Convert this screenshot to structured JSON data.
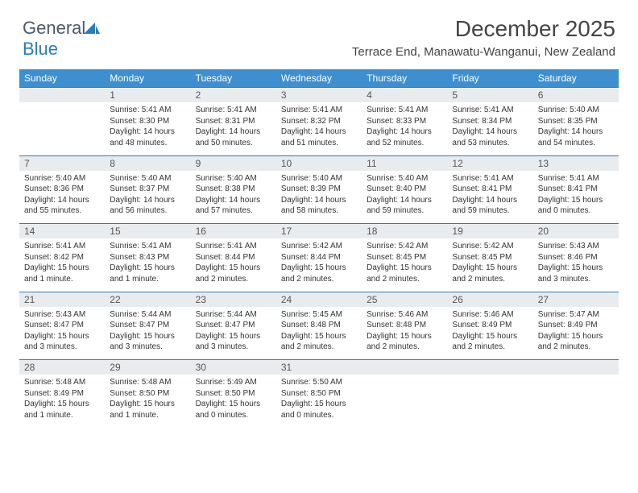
{
  "logo": {
    "text1": "General",
    "text2": "Blue"
  },
  "title": "December 2025",
  "location": "Terrace End, Manawatu-Wanganui, New Zealand",
  "dayNames": [
    "Sunday",
    "Monday",
    "Tuesday",
    "Wednesday",
    "Thursday",
    "Friday",
    "Saturday"
  ],
  "colors": {
    "headerBg": "#3d8fcf",
    "numBg": "#e9ecef",
    "accent": "#2b7bbf",
    "text": "#333333"
  },
  "weeks": [
    {
      "nums": [
        "",
        "1",
        "2",
        "3",
        "4",
        "5",
        "6"
      ],
      "cells": [
        null,
        {
          "sunrise": "5:41 AM",
          "sunset": "8:30 PM",
          "daylight": "14 hours and 48 minutes."
        },
        {
          "sunrise": "5:41 AM",
          "sunset": "8:31 PM",
          "daylight": "14 hours and 50 minutes."
        },
        {
          "sunrise": "5:41 AM",
          "sunset": "8:32 PM",
          "daylight": "14 hours and 51 minutes."
        },
        {
          "sunrise": "5:41 AM",
          "sunset": "8:33 PM",
          "daylight": "14 hours and 52 minutes."
        },
        {
          "sunrise": "5:41 AM",
          "sunset": "8:34 PM",
          "daylight": "14 hours and 53 minutes."
        },
        {
          "sunrise": "5:40 AM",
          "sunset": "8:35 PM",
          "daylight": "14 hours and 54 minutes."
        }
      ]
    },
    {
      "nums": [
        "7",
        "8",
        "9",
        "10",
        "11",
        "12",
        "13"
      ],
      "cells": [
        {
          "sunrise": "5:40 AM",
          "sunset": "8:36 PM",
          "daylight": "14 hours and 55 minutes."
        },
        {
          "sunrise": "5:40 AM",
          "sunset": "8:37 PM",
          "daylight": "14 hours and 56 minutes."
        },
        {
          "sunrise": "5:40 AM",
          "sunset": "8:38 PM",
          "daylight": "14 hours and 57 minutes."
        },
        {
          "sunrise": "5:40 AM",
          "sunset": "8:39 PM",
          "daylight": "14 hours and 58 minutes."
        },
        {
          "sunrise": "5:40 AM",
          "sunset": "8:40 PM",
          "daylight": "14 hours and 59 minutes."
        },
        {
          "sunrise": "5:41 AM",
          "sunset": "8:41 PM",
          "daylight": "14 hours and 59 minutes."
        },
        {
          "sunrise": "5:41 AM",
          "sunset": "8:41 PM",
          "daylight": "15 hours and 0 minutes."
        }
      ]
    },
    {
      "nums": [
        "14",
        "15",
        "16",
        "17",
        "18",
        "19",
        "20"
      ],
      "cells": [
        {
          "sunrise": "5:41 AM",
          "sunset": "8:42 PM",
          "daylight": "15 hours and 1 minute."
        },
        {
          "sunrise": "5:41 AM",
          "sunset": "8:43 PM",
          "daylight": "15 hours and 1 minute."
        },
        {
          "sunrise": "5:41 AM",
          "sunset": "8:44 PM",
          "daylight": "15 hours and 2 minutes."
        },
        {
          "sunrise": "5:42 AM",
          "sunset": "8:44 PM",
          "daylight": "15 hours and 2 minutes."
        },
        {
          "sunrise": "5:42 AM",
          "sunset": "8:45 PM",
          "daylight": "15 hours and 2 minutes."
        },
        {
          "sunrise": "5:42 AM",
          "sunset": "8:45 PM",
          "daylight": "15 hours and 2 minutes."
        },
        {
          "sunrise": "5:43 AM",
          "sunset": "8:46 PM",
          "daylight": "15 hours and 3 minutes."
        }
      ]
    },
    {
      "nums": [
        "21",
        "22",
        "23",
        "24",
        "25",
        "26",
        "27"
      ],
      "cells": [
        {
          "sunrise": "5:43 AM",
          "sunset": "8:47 PM",
          "daylight": "15 hours and 3 minutes."
        },
        {
          "sunrise": "5:44 AM",
          "sunset": "8:47 PM",
          "daylight": "15 hours and 3 minutes."
        },
        {
          "sunrise": "5:44 AM",
          "sunset": "8:47 PM",
          "daylight": "15 hours and 3 minutes."
        },
        {
          "sunrise": "5:45 AM",
          "sunset": "8:48 PM",
          "daylight": "15 hours and 2 minutes."
        },
        {
          "sunrise": "5:46 AM",
          "sunset": "8:48 PM",
          "daylight": "15 hours and 2 minutes."
        },
        {
          "sunrise": "5:46 AM",
          "sunset": "8:49 PM",
          "daylight": "15 hours and 2 minutes."
        },
        {
          "sunrise": "5:47 AM",
          "sunset": "8:49 PM",
          "daylight": "15 hours and 2 minutes."
        }
      ]
    },
    {
      "nums": [
        "28",
        "29",
        "30",
        "31",
        "",
        "",
        ""
      ],
      "cells": [
        {
          "sunrise": "5:48 AM",
          "sunset": "8:49 PM",
          "daylight": "15 hours and 1 minute."
        },
        {
          "sunrise": "5:48 AM",
          "sunset": "8:50 PM",
          "daylight": "15 hours and 1 minute."
        },
        {
          "sunrise": "5:49 AM",
          "sunset": "8:50 PM",
          "daylight": "15 hours and 0 minutes."
        },
        {
          "sunrise": "5:50 AM",
          "sunset": "8:50 PM",
          "daylight": "15 hours and 0 minutes."
        },
        null,
        null,
        null
      ]
    }
  ],
  "labels": {
    "sunrise": "Sunrise:",
    "sunset": "Sunset:",
    "daylight": "Daylight:"
  }
}
